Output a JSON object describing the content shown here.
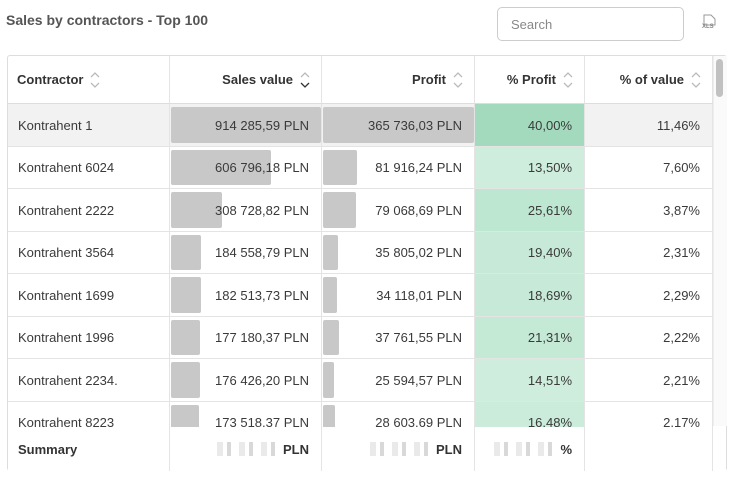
{
  "header": {
    "title": "Sales by contractors - Top 100",
    "search_placeholder": "Search",
    "export_label": "XLS"
  },
  "table": {
    "columns": [
      "Contractor",
      "Sales value",
      "Profit",
      "% Profit",
      "% of value"
    ],
    "rows": [
      [
        "Kontrahent 1",
        "914 285,59 PLN",
        "365 736,03 PLN",
        "40,00%",
        "11,46%"
      ],
      [
        "Kontrahent 6024",
        "606 796,18 PLN",
        "81 916,24 PLN",
        "13,50%",
        "7,60%"
      ],
      [
        "Kontrahent 2222",
        "308 728,82 PLN",
        "79 068,69 PLN",
        "25,61%",
        "3,87%"
      ],
      [
        "Kontrahent 3564",
        "184 558,79 PLN",
        "35 805,02 PLN",
        "19,40%",
        "2,31%"
      ],
      [
        "Kontrahent 1699",
        "182 513,73 PLN",
        "34 118,01 PLN",
        "18,69%",
        "2,29%"
      ],
      [
        "Kontrahent 1996",
        "177 180,37 PLN",
        "37 761,55 PLN",
        "21,31%",
        "2,22%"
      ],
      [
        "Kontrahent 2234.",
        "176 426,20 PLN",
        "25 594,57 PLN",
        "14,51%",
        "2,21%"
      ],
      [
        "Kontrahent 8223",
        "173 518,37 PLN",
        "28 603,69 PLN",
        "16,48%",
        "2,17%"
      ]
    ],
    "summary": {
      "label": "Summary",
      "sales_value": "PLN",
      "profit": "PLN",
      "percent_profit": "%"
    }
  }
}
